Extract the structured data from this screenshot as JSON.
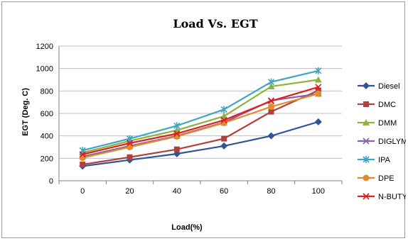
{
  "chart_data": {
    "type": "line",
    "title": "Load Vs. EGT",
    "xlabel": "Load(%)",
    "ylabel": "EGT (Deg. C)",
    "x": [
      0,
      20,
      40,
      60,
      80,
      100
    ],
    "ylim": [
      0,
      1200
    ],
    "yticks": [
      0,
      200,
      400,
      600,
      800,
      1000,
      1200
    ],
    "grid": true,
    "legend_position": "right",
    "series": [
      {
        "name": "Diesel",
        "color": "#2f5597",
        "marker": "diamond",
        "values": [
          130,
          185,
          240,
          310,
          400,
          525
        ]
      },
      {
        "name": "DMC",
        "color": "#b0413e",
        "marker": "square",
        "values": [
          145,
          210,
          280,
          375,
          615,
          805
        ]
      },
      {
        "name": "DMM",
        "color": "#8fb23f",
        "marker": "triangle",
        "values": [
          250,
          355,
          450,
          575,
          840,
          900
        ]
      },
      {
        "name": "DIGLYME",
        "color": "#7f63a7",
        "marker": "x",
        "values": [
          215,
          310,
          400,
          520,
          715,
          775
        ]
      },
      {
        "name": "IPA",
        "color": "#3ea6c3",
        "marker": "star",
        "values": [
          270,
          375,
          490,
          635,
          880,
          980
        ]
      },
      {
        "name": "DPE",
        "color": "#e58a2c",
        "marker": "circle",
        "values": [
          205,
          300,
          395,
          515,
          660,
          775
        ]
      },
      {
        "name": "N-BUTYL",
        "color": "#e31c1c",
        "marker": "x",
        "values": [
          235,
          335,
          420,
          540,
          710,
          835
        ]
      }
    ]
  }
}
